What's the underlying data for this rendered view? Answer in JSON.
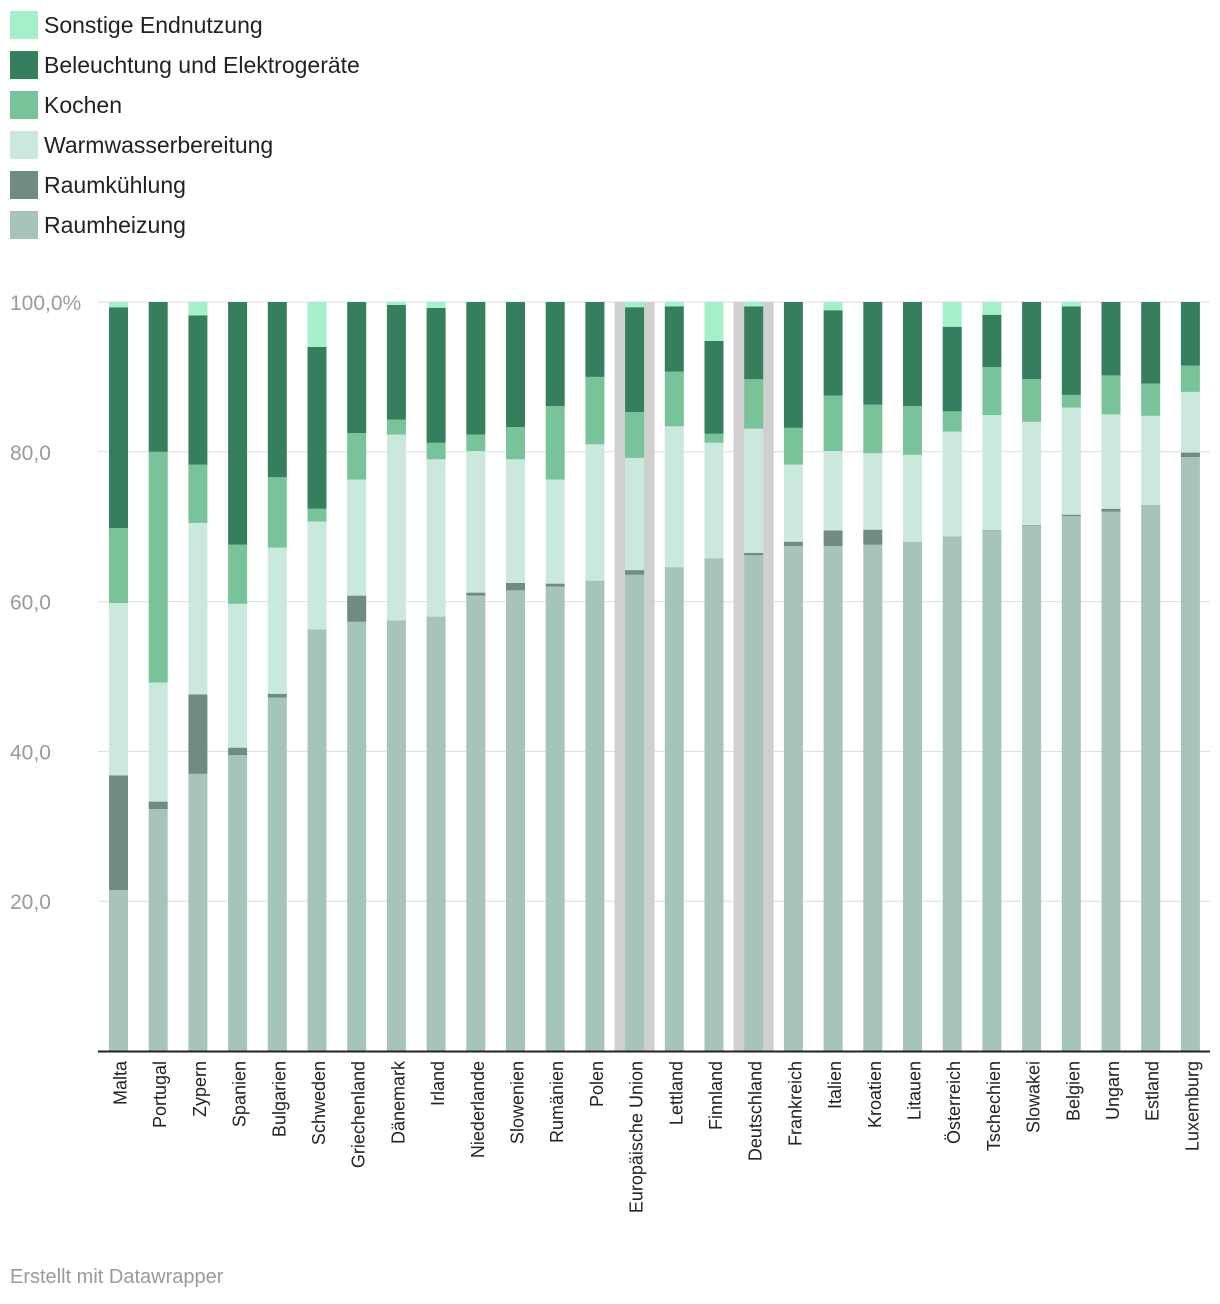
{
  "footer": "Erstellt mit Datawrapper",
  "colors": {
    "sonstige": "#a5efc9",
    "beleuchtung": "#367f5e",
    "kochen": "#78c39a",
    "warmwasser": "#cbe8dc",
    "kuehlung": "#708c81",
    "heizung": "#a6c4b8",
    "highlight": "#d0d0d0",
    "grid": "#dddddd",
    "tick": "#9a9a9a"
  },
  "chart_data": {
    "type": "bar",
    "stacked": true,
    "title": "",
    "xlabel": "",
    "ylabel": "",
    "ylim": [
      0,
      100
    ],
    "yticks": [
      "20,0",
      "40,0",
      "60,0",
      "80,0",
      "100,0%"
    ],
    "ytick_values": [
      20,
      40,
      60,
      80,
      100
    ],
    "grid": true,
    "legend_position": "top-left",
    "highlighted": [
      "Europäische Union",
      "Deutschland"
    ],
    "categories": [
      "Malta",
      "Portugal",
      "Zypern",
      "Spanien",
      "Bulgarien",
      "Schweden",
      "Griechenland",
      "Dänemark",
      "Irland",
      "Niederlande",
      "Slowenien",
      "Rumänien",
      "Polen",
      "Europäische Union",
      "Lettland",
      "Finnland",
      "Deutschland",
      "Frankreich",
      "Italien",
      "Kroatien",
      "Litauen",
      "Österreich",
      "Tschechien",
      "Slowakei",
      "Belgien",
      "Ungarn",
      "Estland",
      "Luxemburg"
    ],
    "series": [
      {
        "name": "Raumheizung",
        "color_key": "heizung",
        "values": [
          21.5,
          32.3,
          37,
          39.5,
          47.2,
          56.3,
          57.3,
          57.5,
          58,
          60.8,
          61.5,
          62,
          62.8,
          63.6,
          64.6,
          65.8,
          66.2,
          67.4,
          67.4,
          67.6,
          68,
          68.7,
          69.4,
          70.1,
          71.4,
          72,
          72.9,
          79.3
        ]
      },
      {
        "name": "Raumkühlung",
        "color_key": "kuehlung",
        "values": [
          15.3,
          1,
          10.6,
          1,
          0.5,
          0,
          3.5,
          0,
          0,
          0.4,
          1,
          0.4,
          0,
          0.6,
          0,
          0,
          0.3,
          0.6,
          2.1,
          2,
          0,
          0,
          0.1,
          0.1,
          0.2,
          0.4,
          0,
          0.6
        ]
      },
      {
        "name": "Warmwasserbereitung",
        "color_key": "warmwasser",
        "values": [
          23,
          15.9,
          22.9,
          19.2,
          19.5,
          14.4,
          15.5,
          24.8,
          21,
          18.9,
          16.5,
          13.9,
          18.2,
          15,
          18.8,
          15.4,
          16.6,
          10.3,
          10.6,
          10.2,
          11.6,
          14,
          15.4,
          13.8,
          14.3,
          12.6,
          11.9,
          8.1
        ]
      },
      {
        "name": "Kochen",
        "color_key": "kochen",
        "values": [
          10,
          30.8,
          7.8,
          7.9,
          9.4,
          1.7,
          6.2,
          2,
          2.2,
          2.2,
          4.3,
          9.8,
          9,
          6.1,
          7.3,
          1.2,
          6.6,
          4.9,
          7.4,
          6.5,
          6.5,
          2.7,
          6.4,
          5.7,
          1.7,
          5.2,
          4.3,
          3.5
        ]
      },
      {
        "name": "Beleuchtung und Elektrogeräte",
        "color_key": "beleuchtung",
        "values": [
          29.5,
          20,
          19.9,
          32.4,
          23.4,
          21.6,
          17.5,
          15.3,
          18,
          17.7,
          16.7,
          13.9,
          10,
          14,
          8.7,
          12.4,
          9.7,
          16.8,
          11.4,
          13.7,
          13.9,
          11.3,
          7,
          10.3,
          11.8,
          9.8,
          10.9,
          8.5
        ]
      },
      {
        "name": "Sonstige Endnutzung",
        "color_key": "sonstige",
        "values": [
          0.7,
          0,
          1.8,
          0,
          0,
          6,
          0,
          0.4,
          0.8,
          0,
          0,
          0,
          0,
          0.7,
          0.6,
          5.2,
          0.6,
          0,
          1.1,
          0,
          0,
          3.3,
          1.7,
          0,
          0.6,
          0,
          0,
          0
        ]
      }
    ]
  }
}
